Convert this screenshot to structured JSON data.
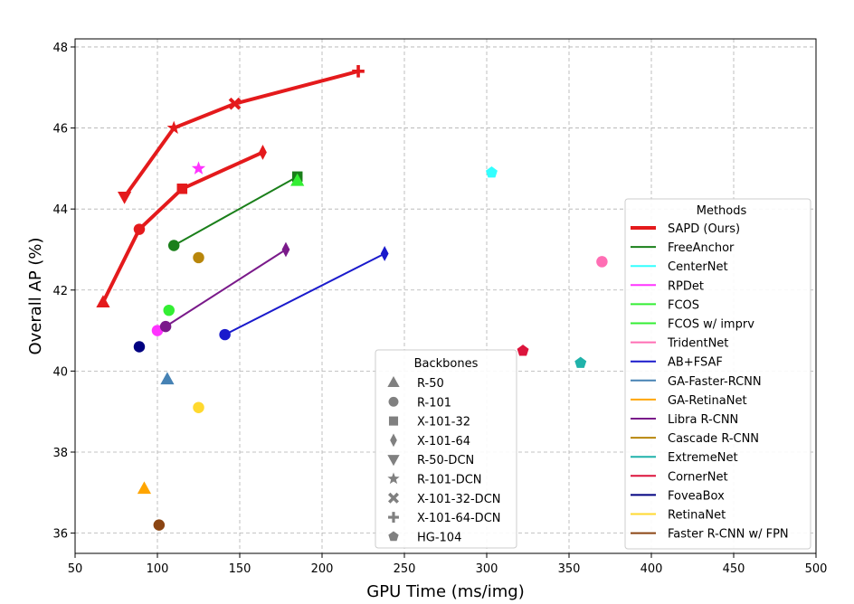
{
  "chart_data": {
    "type": "scatter",
    "title": "",
    "xlabel": "GPU Time (ms/img)",
    "ylabel": "Overall AP (%)",
    "xlim": [
      50,
      500
    ],
    "ylim": [
      35.5,
      48.2
    ],
    "xticks": [
      50,
      100,
      150,
      200,
      250,
      300,
      350,
      400,
      450,
      500
    ],
    "yticks": [
      36,
      38,
      40,
      42,
      44,
      46,
      48
    ],
    "grid": true,
    "methods_legend": {
      "title": "Methods",
      "placement": "right",
      "entries": [
        {
          "name": "SAPD (Ours)",
          "color": "#e41a1c"
        },
        {
          "name": "FreeAnchor",
          "color": "#1a7f1a"
        },
        {
          "name": "CenterNet",
          "color": "#33ffff"
        },
        {
          "name": "RPDet",
          "color": "#ff33ff"
        },
        {
          "name": "FCOS",
          "color": "#33ee33"
        },
        {
          "name": "FCOS w/ imprv",
          "color": "#33ee33"
        },
        {
          "name": "TridentNet",
          "color": "#ff6eb4"
        },
        {
          "name": "AB+FSAF",
          "color": "#1a1acc"
        },
        {
          "name": "GA-Faster-RCNN",
          "color": "#4682b4"
        },
        {
          "name": "GA-RetinaNet",
          "color": "#ffa500"
        },
        {
          "name": "Libra R-CNN",
          "color": "#7a1a8a"
        },
        {
          "name": "Cascade R-CNN",
          "color": "#b8860b"
        },
        {
          "name": "ExtremeNet",
          "color": "#20b2aa"
        },
        {
          "name": "CornerNet",
          "color": "#dc143c"
        },
        {
          "name": "FoveaBox",
          "color": "#000080"
        },
        {
          "name": "RetinaNet",
          "color": "#ffd92f"
        },
        {
          "name": "Faster R-CNN w/ FPN",
          "color": "#8b4513"
        }
      ]
    },
    "backbones_legend": {
      "title": "Backbones",
      "placement": "lower-center",
      "entries": [
        {
          "name": "R-50",
          "marker": "triangle-up"
        },
        {
          "name": "R-101",
          "marker": "circle"
        },
        {
          "name": "X-101-32",
          "marker": "square"
        },
        {
          "name": "X-101-64",
          "marker": "thin-diamond"
        },
        {
          "name": "R-50-DCN",
          "marker": "triangle-down"
        },
        {
          "name": "R-101-DCN",
          "marker": "star"
        },
        {
          "name": "X-101-32-DCN",
          "marker": "x"
        },
        {
          "name": "X-101-64-DCN",
          "marker": "plus"
        },
        {
          "name": "HG-104",
          "marker": "pentagon"
        }
      ]
    },
    "series": [
      {
        "method": "SAPD (Ours)",
        "color": "#e41a1c",
        "line": "thick",
        "points": [
          {
            "x": 67,
            "y": 41.7,
            "marker": "triangle-up"
          },
          {
            "x": 89,
            "y": 43.5,
            "marker": "circle"
          },
          {
            "x": 115,
            "y": 44.5,
            "marker": "square"
          },
          {
            "x": 164,
            "y": 45.4,
            "marker": "thin-diamond"
          }
        ]
      },
      {
        "method": "SAPD (Ours)",
        "color": "#e41a1c",
        "line": "thick",
        "points": [
          {
            "x": 80,
            "y": 44.3,
            "marker": "triangle-down"
          },
          {
            "x": 110,
            "y": 46.0,
            "marker": "star"
          },
          {
            "x": 147,
            "y": 46.6,
            "marker": "x"
          },
          {
            "x": 222,
            "y": 47.4,
            "marker": "plus"
          }
        ]
      },
      {
        "method": "FreeAnchor",
        "color": "#1a7f1a",
        "line": "thin",
        "points": [
          {
            "x": 110,
            "y": 43.1,
            "marker": "circle"
          },
          {
            "x": 185,
            "y": 44.8,
            "marker": "square"
          }
        ]
      },
      {
        "method": "FCOS w/ imprv",
        "color": "#33ee33",
        "line": "none",
        "points": [
          {
            "x": 185,
            "y": 44.7,
            "marker": "triangle-up"
          }
        ]
      },
      {
        "method": "CenterNet",
        "color": "#33ffff",
        "line": "none",
        "points": [
          {
            "x": 303,
            "y": 44.9,
            "marker": "pentagon"
          }
        ]
      },
      {
        "method": "RPDet",
        "color": "#ff33ff",
        "line": "none",
        "points": [
          {
            "x": 125,
            "y": 45.0,
            "marker": "star"
          },
          {
            "x": 100,
            "y": 41.0,
            "marker": "circle"
          }
        ]
      },
      {
        "method": "FCOS",
        "color": "#33ee33",
        "line": "none",
        "points": [
          {
            "x": 107,
            "y": 41.5,
            "marker": "circle"
          }
        ]
      },
      {
        "method": "TridentNet",
        "color": "#ff6eb4",
        "line": "none",
        "points": [
          {
            "x": 370,
            "y": 42.7,
            "marker": "circle"
          }
        ]
      },
      {
        "method": "AB+FSAF",
        "color": "#1a1acc",
        "line": "thin",
        "points": [
          {
            "x": 141,
            "y": 40.9,
            "marker": "circle"
          },
          {
            "x": 238,
            "y": 42.9,
            "marker": "thin-diamond"
          }
        ]
      },
      {
        "method": "GA-Faster-RCNN",
        "color": "#4682b4",
        "line": "none",
        "points": [
          {
            "x": 106,
            "y": 39.8,
            "marker": "triangle-up"
          }
        ]
      },
      {
        "method": "GA-RetinaNet",
        "color": "#ffa500",
        "line": "none",
        "points": [
          {
            "x": 92,
            "y": 37.1,
            "marker": "triangle-up"
          }
        ]
      },
      {
        "method": "Libra R-CNN",
        "color": "#7a1a8a",
        "line": "thin",
        "points": [
          {
            "x": 105,
            "y": 41.1,
            "marker": "circle"
          },
          {
            "x": 178,
            "y": 43.0,
            "marker": "thin-diamond"
          }
        ]
      },
      {
        "method": "Cascade R-CNN",
        "color": "#b8860b",
        "line": "none",
        "points": [
          {
            "x": 125,
            "y": 42.8,
            "marker": "circle"
          }
        ]
      },
      {
        "method": "ExtremeNet",
        "color": "#20b2aa",
        "line": "none",
        "points": [
          {
            "x": 357,
            "y": 40.2,
            "marker": "pentagon"
          }
        ]
      },
      {
        "method": "CornerNet",
        "color": "#dc143c",
        "line": "none",
        "points": [
          {
            "x": 322,
            "y": 40.5,
            "marker": "pentagon"
          }
        ]
      },
      {
        "method": "FoveaBox",
        "color": "#000080",
        "line": "none",
        "points": [
          {
            "x": 89,
            "y": 40.6,
            "marker": "circle"
          }
        ]
      },
      {
        "method": "RetinaNet",
        "color": "#ffd92f",
        "line": "none",
        "points": [
          {
            "x": 125,
            "y": 39.1,
            "marker": "circle"
          }
        ]
      },
      {
        "method": "Faster R-CNN w/ FPN",
        "color": "#8b4513",
        "line": "none",
        "points": [
          {
            "x": 101,
            "y": 36.2,
            "marker": "circle"
          }
        ]
      }
    ]
  }
}
